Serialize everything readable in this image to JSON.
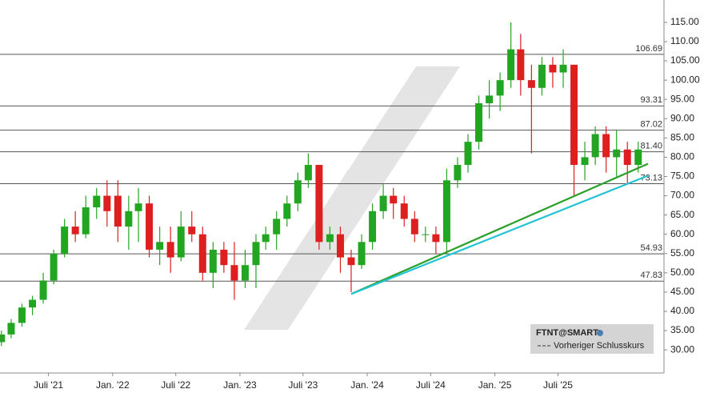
{
  "chart_data": {
    "type": "candlestick",
    "instrument": "FTNT@SMART",
    "prev_close_label": "Vorheriger Schlusskurs",
    "up_color": "#22a622",
    "down_color": "#dd1f1f",
    "x": [
      "2021-02",
      "2021-03",
      "2021-04",
      "2021-05",
      "2021-06",
      "2021-07",
      "2021-08",
      "2021-09",
      "2021-10",
      "2021-11",
      "2021-12",
      "2022-01",
      "2022-02",
      "2022-03",
      "2022-04",
      "2022-05",
      "2022-06",
      "2022-07",
      "2022-08",
      "2022-09",
      "2022-10",
      "2022-11",
      "2022-12",
      "2023-01",
      "2023-02",
      "2023-03",
      "2023-04",
      "2023-05",
      "2023-06",
      "2023-07",
      "2023-08",
      "2023-09",
      "2023-10",
      "2023-11",
      "2023-12",
      "2024-01",
      "2024-02",
      "2024-03",
      "2024-04",
      "2024-05",
      "2024-06",
      "2024-07",
      "2024-08",
      "2024-09",
      "2024-10",
      "2024-11",
      "2024-12",
      "2025-01",
      "2025-02",
      "2025-03",
      "2025-04",
      "2025-05",
      "2025-06",
      "2025-07",
      "2025-08",
      "2025-09",
      "2025-10",
      "2025-11",
      "2025-12",
      "2026-01",
      "2026-02"
    ],
    "open": [
      32,
      34,
      37,
      41,
      43,
      48,
      55,
      62,
      60,
      67,
      70,
      70,
      62,
      66,
      68,
      56,
      58,
      54,
      62,
      60,
      50,
      56,
      52,
      48,
      52,
      58,
      60,
      64,
      68,
      74,
      78,
      58,
      60,
      54,
      52,
      58,
      66,
      70,
      68,
      64,
      60,
      60,
      58,
      74,
      78,
      84,
      94,
      96,
      100,
      108,
      100,
      98,
      104,
      102,
      104,
      78,
      80,
      86,
      80,
      82,
      78
    ],
    "high": [
      35,
      38,
      42,
      44,
      50,
      56,
      64,
      66,
      70,
      72,
      74,
      74,
      70,
      72,
      70,
      62,
      62,
      66,
      66,
      62,
      58,
      58,
      58,
      56,
      60,
      62,
      66,
      70,
      76,
      81,
      78,
      62,
      62,
      56,
      60,
      68,
      73,
      72,
      70,
      66,
      62,
      62,
      77,
      80,
      86,
      96,
      100,
      102,
      115,
      112,
      104,
      106,
      106,
      108,
      104,
      84,
      88,
      88,
      87,
      84,
      84
    ],
    "low": [
      31,
      33,
      36,
      39,
      42,
      47,
      54,
      58,
      59,
      64,
      62,
      58,
      56,
      58,
      54,
      52,
      50,
      53,
      58,
      48,
      46,
      50,
      43,
      46,
      46,
      56,
      56,
      62,
      66,
      72,
      56,
      56,
      50,
      45,
      51,
      56,
      64,
      64,
      62,
      58,
      58,
      55,
      55,
      72,
      76,
      82,
      90,
      92,
      98,
      96,
      81,
      96,
      98,
      98,
      70,
      74,
      78,
      76,
      75,
      73,
      76
    ],
    "close": [
      34,
      37,
      41,
      43,
      48,
      55,
      62,
      60,
      67,
      70,
      66,
      62,
      66,
      68,
      56,
      58,
      54,
      62,
      60,
      50,
      56,
      52,
      48,
      52,
      58,
      60,
      64,
      68,
      74,
      78,
      58,
      60,
      54,
      52,
      58,
      66,
      70,
      68,
      64,
      60,
      60,
      58,
      74,
      78,
      84,
      94,
      96,
      100,
      108,
      100,
      98,
      104,
      102,
      104,
      78,
      80,
      86,
      80,
      82,
      78,
      82
    ],
    "xlim": [
      "2021-02-12",
      "2026-05-01"
    ],
    "xticks": [
      {
        "value": "2021-07-01",
        "label": "Juli '21"
      },
      {
        "value": "2022-01-01",
        "label": "Jan. '22"
      },
      {
        "value": "2022-07-01",
        "label": "Juli '22"
      },
      {
        "value": "2023-01-01",
        "label": "Jan. '23"
      },
      {
        "value": "2023-07-01",
        "label": "Juli '23"
      },
      {
        "value": "2024-01-01",
        "label": "Jan. '24"
      },
      {
        "value": "2024-07-01",
        "label": "Juli '24"
      },
      {
        "value": "2025-01-01",
        "label": "Jan. '25"
      },
      {
        "value": "2025-07-01",
        "label": "Juli '25"
      }
    ],
    "ylim": [
      24,
      120.8
    ],
    "yticks": [
      {
        "value": 30,
        "label": "30.00"
      },
      {
        "value": 35,
        "label": "35.00"
      },
      {
        "value": 40,
        "label": "40.00"
      },
      {
        "value": 45,
        "label": "45.00"
      },
      {
        "value": 50,
        "label": "50.00"
      },
      {
        "value": 55,
        "label": "55.00"
      },
      {
        "value": 60,
        "label": "60.00"
      },
      {
        "value": 65,
        "label": "65.00"
      },
      {
        "value": 70,
        "label": "70.00"
      },
      {
        "value": 75,
        "label": "75.00"
      },
      {
        "value": 80,
        "label": "80.00"
      },
      {
        "value": 85,
        "label": "85.00"
      },
      {
        "value": 90,
        "label": "90.00"
      },
      {
        "value": 95,
        "label": "95.00"
      },
      {
        "value": 100,
        "label": "100.00"
      },
      {
        "value": 105,
        "label": "105.00"
      },
      {
        "value": 110,
        "label": "110.00"
      },
      {
        "value": 115,
        "label": "115.00"
      }
    ],
    "levels": [
      106.69,
      93.31,
      87.02,
      {
        "value": 81.4,
        "label": "81.40"
      },
      73.13,
      54.93,
      47.83
    ],
    "level_color": "#555555",
    "trendlines": [
      {
        "color": "#2aa02a",
        "x": [
          "2023-11",
          "2026-03"
        ],
        "y": [
          44.5,
          78.3
        ]
      },
      {
        "color": "#22c4d4",
        "x": [
          "2023-11",
          "2026-03"
        ],
        "y": [
          44.5,
          75.2
        ]
      }
    ]
  }
}
